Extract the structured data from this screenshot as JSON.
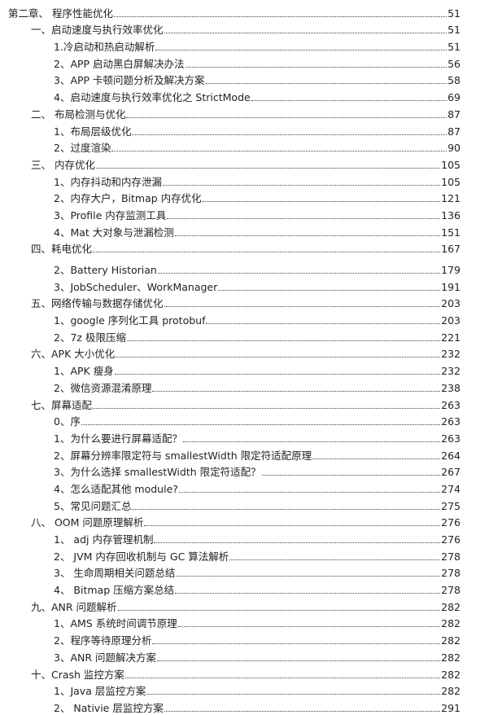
{
  "toc": [
    {
      "level": 0,
      "title": "第二章、  程序性能优化",
      "page": "51"
    },
    {
      "level": 1,
      "title": "一、启动速度与执行效率优化",
      "page": "51"
    },
    {
      "level": 2,
      "title": "1.冷启动和热启动解析",
      "page": "51"
    },
    {
      "level": 2,
      "title": "2、APP 启动黑白屏解决办法",
      "page": "56"
    },
    {
      "level": 2,
      "title": "3、APP  卡顿问题分析及解决方案",
      "page": "58"
    },
    {
      "level": 2,
      "title": "4、启动速度与执行效率优化之 StrictMode",
      "page": "69"
    },
    {
      "level": 1,
      "title": "二、  布局检测与优化",
      "page": "87"
    },
    {
      "level": 2,
      "title": "1、布局层级优化",
      "page": "87"
    },
    {
      "level": 2,
      "title": "2、过度渲染",
      "page": "90"
    },
    {
      "level": 1,
      "title": "三、  内存优化",
      "page": "105"
    },
    {
      "level": 2,
      "title": "1、内存抖动和内存泄漏",
      "page": "105"
    },
    {
      "level": 2,
      "title": "2、内存大户，Bitmap 内存优化",
      "page": "121"
    },
    {
      "level": 2,
      "title": "3、Profile 内存监测工具",
      "page": "136"
    },
    {
      "level": 2,
      "title": "4、Mat 大对象与泄漏检测",
      "page": "151"
    },
    {
      "level": 1,
      "title": "四、耗电优化",
      "page": "167"
    },
    {
      "level": 2,
      "title": "2、Battery Historian",
      "page": "179",
      "gap": true
    },
    {
      "level": 2,
      "title": "3、JobScheduler、WorkManager",
      "page": "191"
    },
    {
      "level": 1,
      "title": "五、网络传输与数据存储优化",
      "page": "203"
    },
    {
      "level": 2,
      "title": "1、google 序列化工具 protobuf",
      "page": "203"
    },
    {
      "level": 2,
      "title": "2、7z 极限压缩",
      "page": "221"
    },
    {
      "level": 1,
      "title": "六、APK 大小优化",
      "page": "232"
    },
    {
      "level": 2,
      "title": "1、APK 瘦身",
      "page": "232"
    },
    {
      "level": 2,
      "title": "2、微信资源混淆原理",
      "page": "238"
    },
    {
      "level": 1,
      "title": "七、屏幕适配",
      "page": "263"
    },
    {
      "level": 2,
      "title": "0、序",
      "page": "263"
    },
    {
      "level": 2,
      "title": "1、为什么要进行屏幕适配？",
      "page": "263"
    },
    {
      "level": 2,
      "title": "2、屏幕分辨率限定符与 smallestWidth 限定符适配原理",
      "page": "264"
    },
    {
      "level": 2,
      "title": "3、为什么选择 smallestWidth 限定符适配？",
      "page": "267"
    },
    {
      "level": 2,
      "title": "4、怎么适配其他 module?",
      "page": "274"
    },
    {
      "level": 2,
      "title": "5、常见问题汇总",
      "page": "275"
    },
    {
      "level": 1,
      "title": "八、  OOM 问题原理解析",
      "page": "276"
    },
    {
      "level": 2,
      "title": "1、  adj 内存管理机制",
      "page": "276"
    },
    {
      "level": 2,
      "title": "2、  JVM 内存回收机制与 GC 算法解析",
      "page": "278"
    },
    {
      "level": 2,
      "title": "3、  生命周期相关问题总结",
      "page": "278"
    },
    {
      "level": 2,
      "title": "4、  Bitmap 压缩方案总结",
      "page": "278"
    },
    {
      "level": 1,
      "title": "九、ANR 问题解析",
      "page": "282"
    },
    {
      "level": 2,
      "title": "1、AMS 系统时间调节原理",
      "page": "282"
    },
    {
      "level": 2,
      "title": "2、程序等待原理分析",
      "page": "282"
    },
    {
      "level": 2,
      "title": "3、ANR 问题解决方案",
      "page": "282"
    },
    {
      "level": 1,
      "title": "十、Crash 监控方案",
      "page": "282"
    },
    {
      "level": 2,
      "title": "1、Java 层监控方案",
      "page": "282"
    },
    {
      "level": 2,
      "title": "2、  Nativie 层监控方案",
      "page": "291"
    }
  ]
}
